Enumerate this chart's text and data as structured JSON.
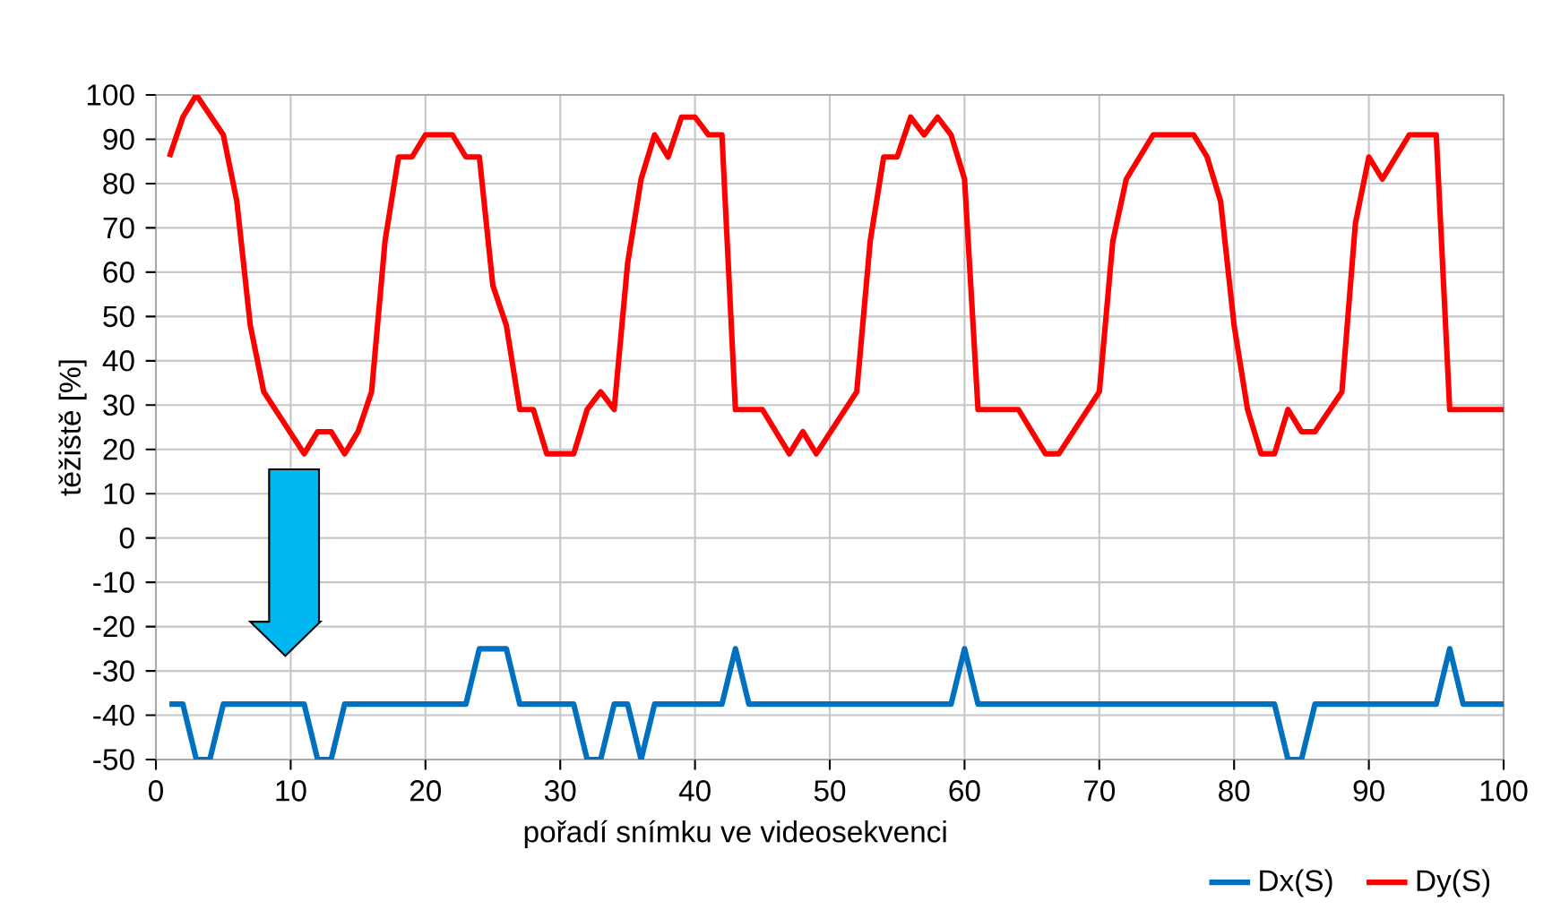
{
  "chart_data": {
    "type": "line",
    "xlabel": "pořadí snímku ve videosekvenci",
    "ylabel": "těžiště  [%]",
    "xlim": [
      0,
      100
    ],
    "ylim": [
      -50,
      100
    ],
    "xticks": [
      0,
      10,
      20,
      30,
      40,
      50,
      60,
      70,
      80,
      90,
      100
    ],
    "yticks": [
      -50,
      -40,
      -30,
      -20,
      -10,
      0,
      10,
      20,
      30,
      40,
      50,
      60,
      70,
      80,
      90,
      100
    ],
    "grid": true,
    "legend": "bottom right",
    "marker": "none",
    "line_style": "solid",
    "series": [
      {
        "name": "Dx(S)",
        "color": "#0070c0",
        "x": [
          1,
          2,
          3,
          4,
          5,
          11,
          12,
          13,
          14,
          23,
          24,
          26,
          27,
          31,
          32,
          33,
          34,
          35,
          36,
          37,
          42,
          43,
          44,
          59,
          60,
          61,
          83,
          84,
          85,
          86,
          95,
          96,
          97,
          100
        ],
        "values": [
          -37.5,
          -37.5,
          -50,
          -50,
          -37.5,
          -37.5,
          -50,
          -50,
          -37.5,
          -37.5,
          -25,
          -25,
          -37.5,
          -37.5,
          -50,
          -50,
          -37.5,
          -37.5,
          -50,
          -37.5,
          -37.5,
          -25,
          -37.5,
          -37.5,
          -25,
          -37.5,
          -37.5,
          -50,
          -50,
          -37.5,
          -37.5,
          -25,
          -37.5,
          -37.5
        ]
      },
      {
        "name": "Dy(S)",
        "color": "#ff0000",
        "x": [
          1,
          2,
          3,
          5,
          6,
          7,
          8,
          11,
          12,
          13,
          14,
          15,
          16,
          17,
          18,
          19,
          20,
          22,
          23,
          24,
          25,
          26,
          27,
          28,
          29,
          31,
          32,
          33,
          34,
          35,
          36,
          37,
          38,
          39,
          40,
          41,
          42,
          43,
          45,
          47,
          48,
          49,
          52,
          53,
          54,
          55,
          56,
          57,
          58,
          59,
          60,
          61,
          64,
          66,
          67,
          70,
          71,
          72,
          74,
          77,
          78,
          79,
          80,
          81,
          82,
          83,
          84,
          85,
          86,
          88,
          89,
          90,
          91,
          93,
          95,
          96,
          100
        ],
        "values": [
          86,
          95,
          100,
          91,
          76,
          48,
          33,
          19,
          24,
          24,
          19,
          24,
          33,
          67,
          86,
          86,
          91,
          91,
          86,
          86,
          57,
          48,
          29,
          29,
          19,
          19,
          29,
          33,
          29,
          62,
          81,
          91,
          86,
          95,
          95,
          91,
          91,
          29,
          29,
          19,
          24,
          19,
          33,
          67,
          86,
          86,
          95,
          91,
          95,
          91,
          81,
          29,
          29,
          19,
          19,
          33,
          67,
          81,
          91,
          91,
          86,
          76,
          48,
          29,
          19,
          19,
          29,
          24,
          24,
          33,
          71,
          86,
          81,
          91,
          91,
          29,
          29
        ]
      }
    ]
  }
}
